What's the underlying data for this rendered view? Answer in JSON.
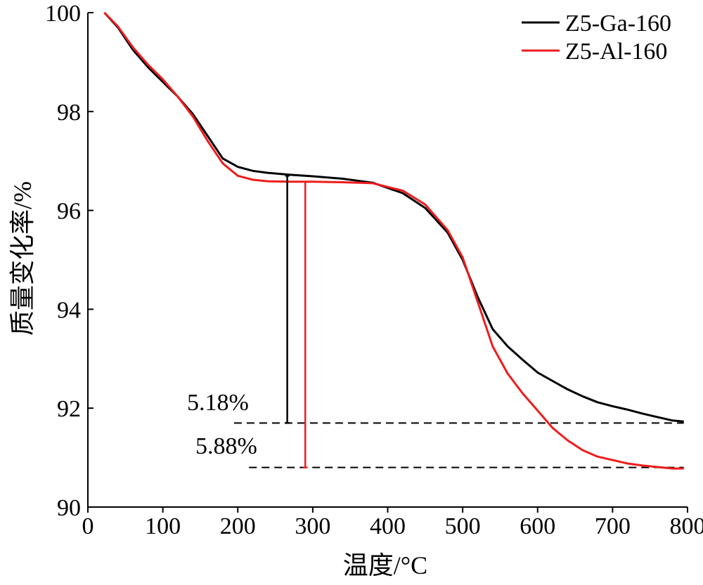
{
  "chart_data": {
    "type": "line",
    "title": "",
    "xlabel": "温度/°C",
    "ylabel": "质量变化率/%",
    "xlim": [
      0,
      800
    ],
    "ylim": [
      90,
      100
    ],
    "xticks": [
      0,
      100,
      200,
      300,
      400,
      500,
      600,
      700,
      800
    ],
    "yticks": [
      90,
      92,
      94,
      96,
      98,
      100
    ],
    "legend_position": "top-right",
    "grid": false,
    "series": [
      {
        "name": "Z5-Ga-160",
        "color": "#000000",
        "x": [
          22,
          40,
          60,
          80,
          100,
          120,
          140,
          160,
          180,
          200,
          220,
          240,
          270,
          300,
          340,
          380,
          420,
          450,
          480,
          500,
          520,
          540,
          560,
          580,
          600,
          620,
          640,
          660,
          680,
          700,
          720,
          740,
          760,
          780,
          795
        ],
        "y": [
          100.0,
          99.7,
          99.25,
          98.9,
          98.6,
          98.3,
          97.95,
          97.5,
          97.05,
          96.88,
          96.8,
          96.76,
          96.72,
          96.69,
          96.64,
          96.56,
          96.35,
          96.05,
          95.55,
          95.0,
          94.25,
          93.6,
          93.25,
          92.98,
          92.72,
          92.55,
          92.38,
          92.24,
          92.12,
          92.04,
          91.97,
          91.89,
          91.82,
          91.75,
          91.73
        ]
      },
      {
        "name": "Z5-Al-160",
        "color": "#ee1c1c",
        "x": [
          22,
          40,
          60,
          80,
          100,
          120,
          140,
          160,
          180,
          200,
          220,
          240,
          270,
          300,
          340,
          380,
          420,
          450,
          480,
          500,
          520,
          540,
          560,
          580,
          600,
          620,
          640,
          660,
          680,
          700,
          720,
          740,
          760,
          780,
          795
        ],
        "y": [
          100.0,
          99.72,
          99.3,
          98.95,
          98.65,
          98.3,
          97.9,
          97.4,
          96.95,
          96.7,
          96.62,
          96.59,
          96.58,
          96.58,
          96.57,
          96.55,
          96.4,
          96.12,
          95.6,
          95.05,
          94.15,
          93.25,
          92.7,
          92.3,
          91.95,
          91.6,
          91.35,
          91.15,
          91.02,
          90.95,
          90.88,
          90.84,
          90.81,
          90.78,
          90.78
        ]
      }
    ],
    "annotations": [
      {
        "text": "5.18%",
        "color": "#000000",
        "x": 266,
        "y_top": 96.7,
        "y_bottom": 91.7
      },
      {
        "text": "5.88%",
        "color": "#ee1c1c",
        "x": 290,
        "y_top": 96.58,
        "y_bottom": 90.8
      }
    ],
    "reference_lines": [
      {
        "y": 91.7,
        "x_start": 195,
        "x_end": 795
      },
      {
        "y": 90.8,
        "x_start": 215,
        "x_end": 795
      }
    ]
  }
}
